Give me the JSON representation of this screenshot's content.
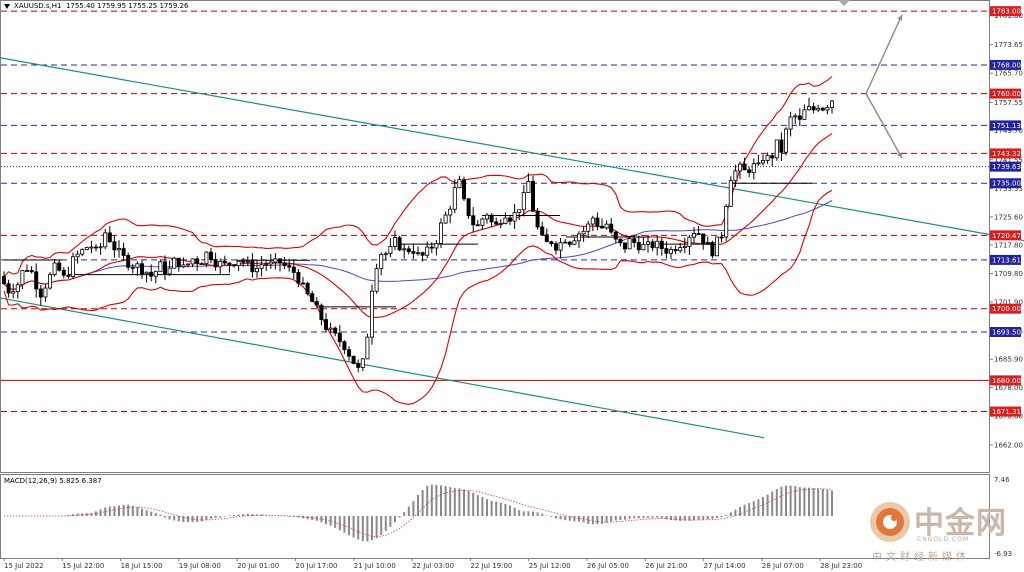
{
  "header": {
    "symbol": "XAUUSD.s,H1",
    "ohlc": "1755.40 1759.95 1755.25 1759.26"
  },
  "macd": {
    "label": "MACD(12,26,9) 5.825 6.387",
    "scale_top": "7.46",
    "scale_bottom": "-6.93"
  },
  "watermark": {
    "name": "中金网",
    "site": "CNGOLD.COM",
    "sub": "中文财经新媒体"
  },
  "colors": {
    "candle": "#000000",
    "bollinger": "#e00000",
    "ma": "#4a4acc",
    "channel": "#1a8f86",
    "macd_hist": "#8a8a8a",
    "macd_signal": "#d04040",
    "support_line_blue": "#2a2aa0",
    "resistance_line_red": "#c00000"
  },
  "chart_data": {
    "type": "candlestick",
    "title": "XAUUSD.s,H1",
    "ylim": [
      1655,
      1785
    ],
    "y_ticks": [
      1781.8,
      1773.65,
      1765.7,
      1757.55,
      1749.7,
      1741.55,
      1733.55,
      1725.6,
      1717.8,
      1709.8,
      1701.9,
      1693.75,
      1685.9,
      1678.0,
      1670.0,
      1662.0
    ],
    "x_labels": [
      "15 Jul 2022",
      "15 Jul 22:00",
      "18 Jul 15:00",
      "19 Jul 08:00",
      "20 Jul 01:00",
      "20 Jul 17:00",
      "21 Jul 10:00",
      "22 Jul 03:00",
      "22 Jul 19:00",
      "25 Jul 12:00",
      "26 Jul 05:00",
      "26 Jul 21:00",
      "27 Jul 14:00",
      "28 Jul 07:00",
      "28 Jul 23:00"
    ],
    "price_levels": [
      {
        "label": "1783.00",
        "value": 1783.0,
        "color": "#c00000",
        "style": "dash"
      },
      {
        "label": "1768.00",
        "value": 1768.0,
        "color": "#2a2aa0",
        "style": "dash"
      },
      {
        "label": "1760.00",
        "value": 1760.0,
        "color": "#c00000",
        "style": "dash"
      },
      {
        "label": "1751.13",
        "value": 1751.13,
        "color": "#2a2aa0",
        "style": "dash"
      },
      {
        "label": "1743.32",
        "value": 1743.32,
        "color": "#c00000",
        "style": "dash"
      },
      {
        "label": "1739.63",
        "value": 1739.63,
        "color": "#2a2aa0",
        "style": "dot"
      },
      {
        "label": "1735.00",
        "value": 1735.0,
        "color": "#2a2aa0",
        "style": "dash"
      },
      {
        "label": "1720.47",
        "value": 1720.47,
        "color": "#c00000",
        "style": "dash"
      },
      {
        "label": "1713.61",
        "value": 1713.61,
        "color": "#2a2aa0",
        "style": "dash"
      },
      {
        "label": "1700.00",
        "value": 1700.0,
        "color": "#c00000",
        "style": "dash"
      },
      {
        "label": "1693.50",
        "value": 1693.5,
        "color": "#2a2aa0",
        "style": "dash"
      },
      {
        "label": "1680.00",
        "value": 1680.0,
        "color": "#c00000",
        "style": "solid"
      },
      {
        "label": "1671.31",
        "value": 1671.31,
        "color": "#c00000",
        "style": "dash"
      }
    ],
    "close_path": [
      [
        0,
        1709
      ],
      [
        8,
        1705
      ],
      [
        18,
        1707
      ],
      [
        25,
        1712
      ],
      [
        32,
        1710
      ],
      [
        40,
        1704
      ],
      [
        48,
        1708
      ],
      [
        56,
        1712
      ],
      [
        65,
        1708
      ],
      [
        74,
        1714
      ],
      [
        82,
        1716
      ],
      [
        90,
        1718
      ],
      [
        98,
        1715
      ],
      [
        106,
        1722
      ],
      [
        112,
        1718
      ],
      [
        120,
        1715
      ],
      [
        128,
        1713
      ],
      [
        136,
        1712
      ],
      [
        144,
        1711
      ],
      [
        152,
        1709
      ],
      [
        160,
        1712
      ],
      [
        168,
        1710
      ],
      [
        176,
        1714
      ],
      [
        184,
        1711
      ],
      [
        192,
        1714
      ],
      [
        200,
        1713
      ],
      [
        208,
        1716
      ],
      [
        216,
        1713
      ],
      [
        224,
        1712
      ],
      [
        232,
        1713
      ],
      [
        240,
        1714
      ],
      [
        248,
        1712
      ],
      [
        256,
        1711
      ],
      [
        264,
        1713
      ],
      [
        272,
        1712
      ],
      [
        280,
        1713
      ],
      [
        288,
        1711
      ],
      [
        296,
        1710
      ],
      [
        304,
        1705
      ],
      [
        312,
        1702
      ],
      [
        320,
        1698
      ],
      [
        328,
        1694
      ],
      [
        336,
        1692
      ],
      [
        344,
        1690
      ],
      [
        352,
        1686
      ],
      [
        360,
        1682
      ],
      [
        366,
        1688
      ],
      [
        370,
        1702
      ],
      [
        374,
        1710
      ],
      [
        378,
        1714
      ],
      [
        382,
        1716
      ],
      [
        388,
        1715
      ],
      [
        396,
        1719
      ],
      [
        404,
        1716
      ],
      [
        412,
        1717
      ],
      [
        420,
        1714
      ],
      [
        428,
        1716
      ],
      [
        436,
        1719
      ],
      [
        442,
        1724
      ],
      [
        448,
        1727
      ],
      [
        454,
        1732
      ],
      [
        458,
        1737
      ],
      [
        462,
        1731
      ],
      [
        466,
        1728
      ],
      [
        470,
        1726
      ],
      [
        476,
        1722
      ],
      [
        482,
        1725
      ],
      [
        488,
        1727
      ],
      [
        494,
        1722
      ],
      [
        500,
        1725
      ],
      [
        506,
        1727
      ],
      [
        512,
        1725
      ],
      [
        518,
        1728
      ],
      [
        524,
        1731
      ],
      [
        528,
        1736
      ],
      [
        532,
        1729
      ],
      [
        536,
        1724
      ],
      [
        540,
        1720
      ],
      [
        546,
        1718
      ],
      [
        552,
        1719
      ],
      [
        558,
        1717
      ],
      [
        564,
        1720
      ],
      [
        570,
        1719
      ],
      [
        578,
        1721
      ],
      [
        586,
        1722
      ],
      [
        594,
        1726
      ],
      [
        600,
        1722
      ],
      [
        606,
        1724
      ],
      [
        612,
        1720
      ],
      [
        618,
        1718
      ],
      [
        624,
        1717
      ],
      [
        630,
        1719
      ],
      [
        638,
        1718
      ],
      [
        646,
        1717
      ],
      [
        654,
        1718
      ],
      [
        662,
        1717
      ],
      [
        670,
        1716
      ],
      [
        678,
        1718
      ],
      [
        686,
        1719
      ],
      [
        692,
        1722
      ],
      [
        700,
        1721
      ],
      [
        706,
        1718
      ],
      [
        712,
        1716
      ],
      [
        718,
        1719
      ],
      [
        724,
        1722
      ],
      [
        728,
        1736
      ],
      [
        734,
        1738
      ],
      [
        740,
        1739
      ],
      [
        746,
        1738
      ],
      [
        752,
        1740
      ],
      [
        758,
        1739
      ],
      [
        764,
        1743
      ],
      [
        770,
        1741
      ],
      [
        776,
        1746
      ],
      [
        782,
        1744
      ],
      [
        788,
        1752
      ],
      [
        794,
        1754
      ],
      [
        800,
        1752
      ],
      [
        806,
        1756
      ],
      [
        812,
        1755
      ],
      [
        818,
        1757
      ],
      [
        824,
        1756
      ],
      [
        830,
        1758
      ],
      [
        836,
        1759.26
      ]
    ],
    "trendlines": [
      {
        "from": [
          0,
          1770
        ],
        "to": [
          1024,
          1719
        ]
      },
      {
        "from": [
          0,
          1703
        ],
        "to": [
          764,
          1664
        ]
      }
    ],
    "forecast_arrows": [
      {
        "points": [
          [
            866,
            1760
          ],
          [
            902,
            1782
          ]
        ],
        "direction": "up"
      },
      {
        "points": [
          [
            866,
            1760
          ],
          [
            902,
            1742
          ]
        ],
        "direction": "down"
      }
    ]
  }
}
